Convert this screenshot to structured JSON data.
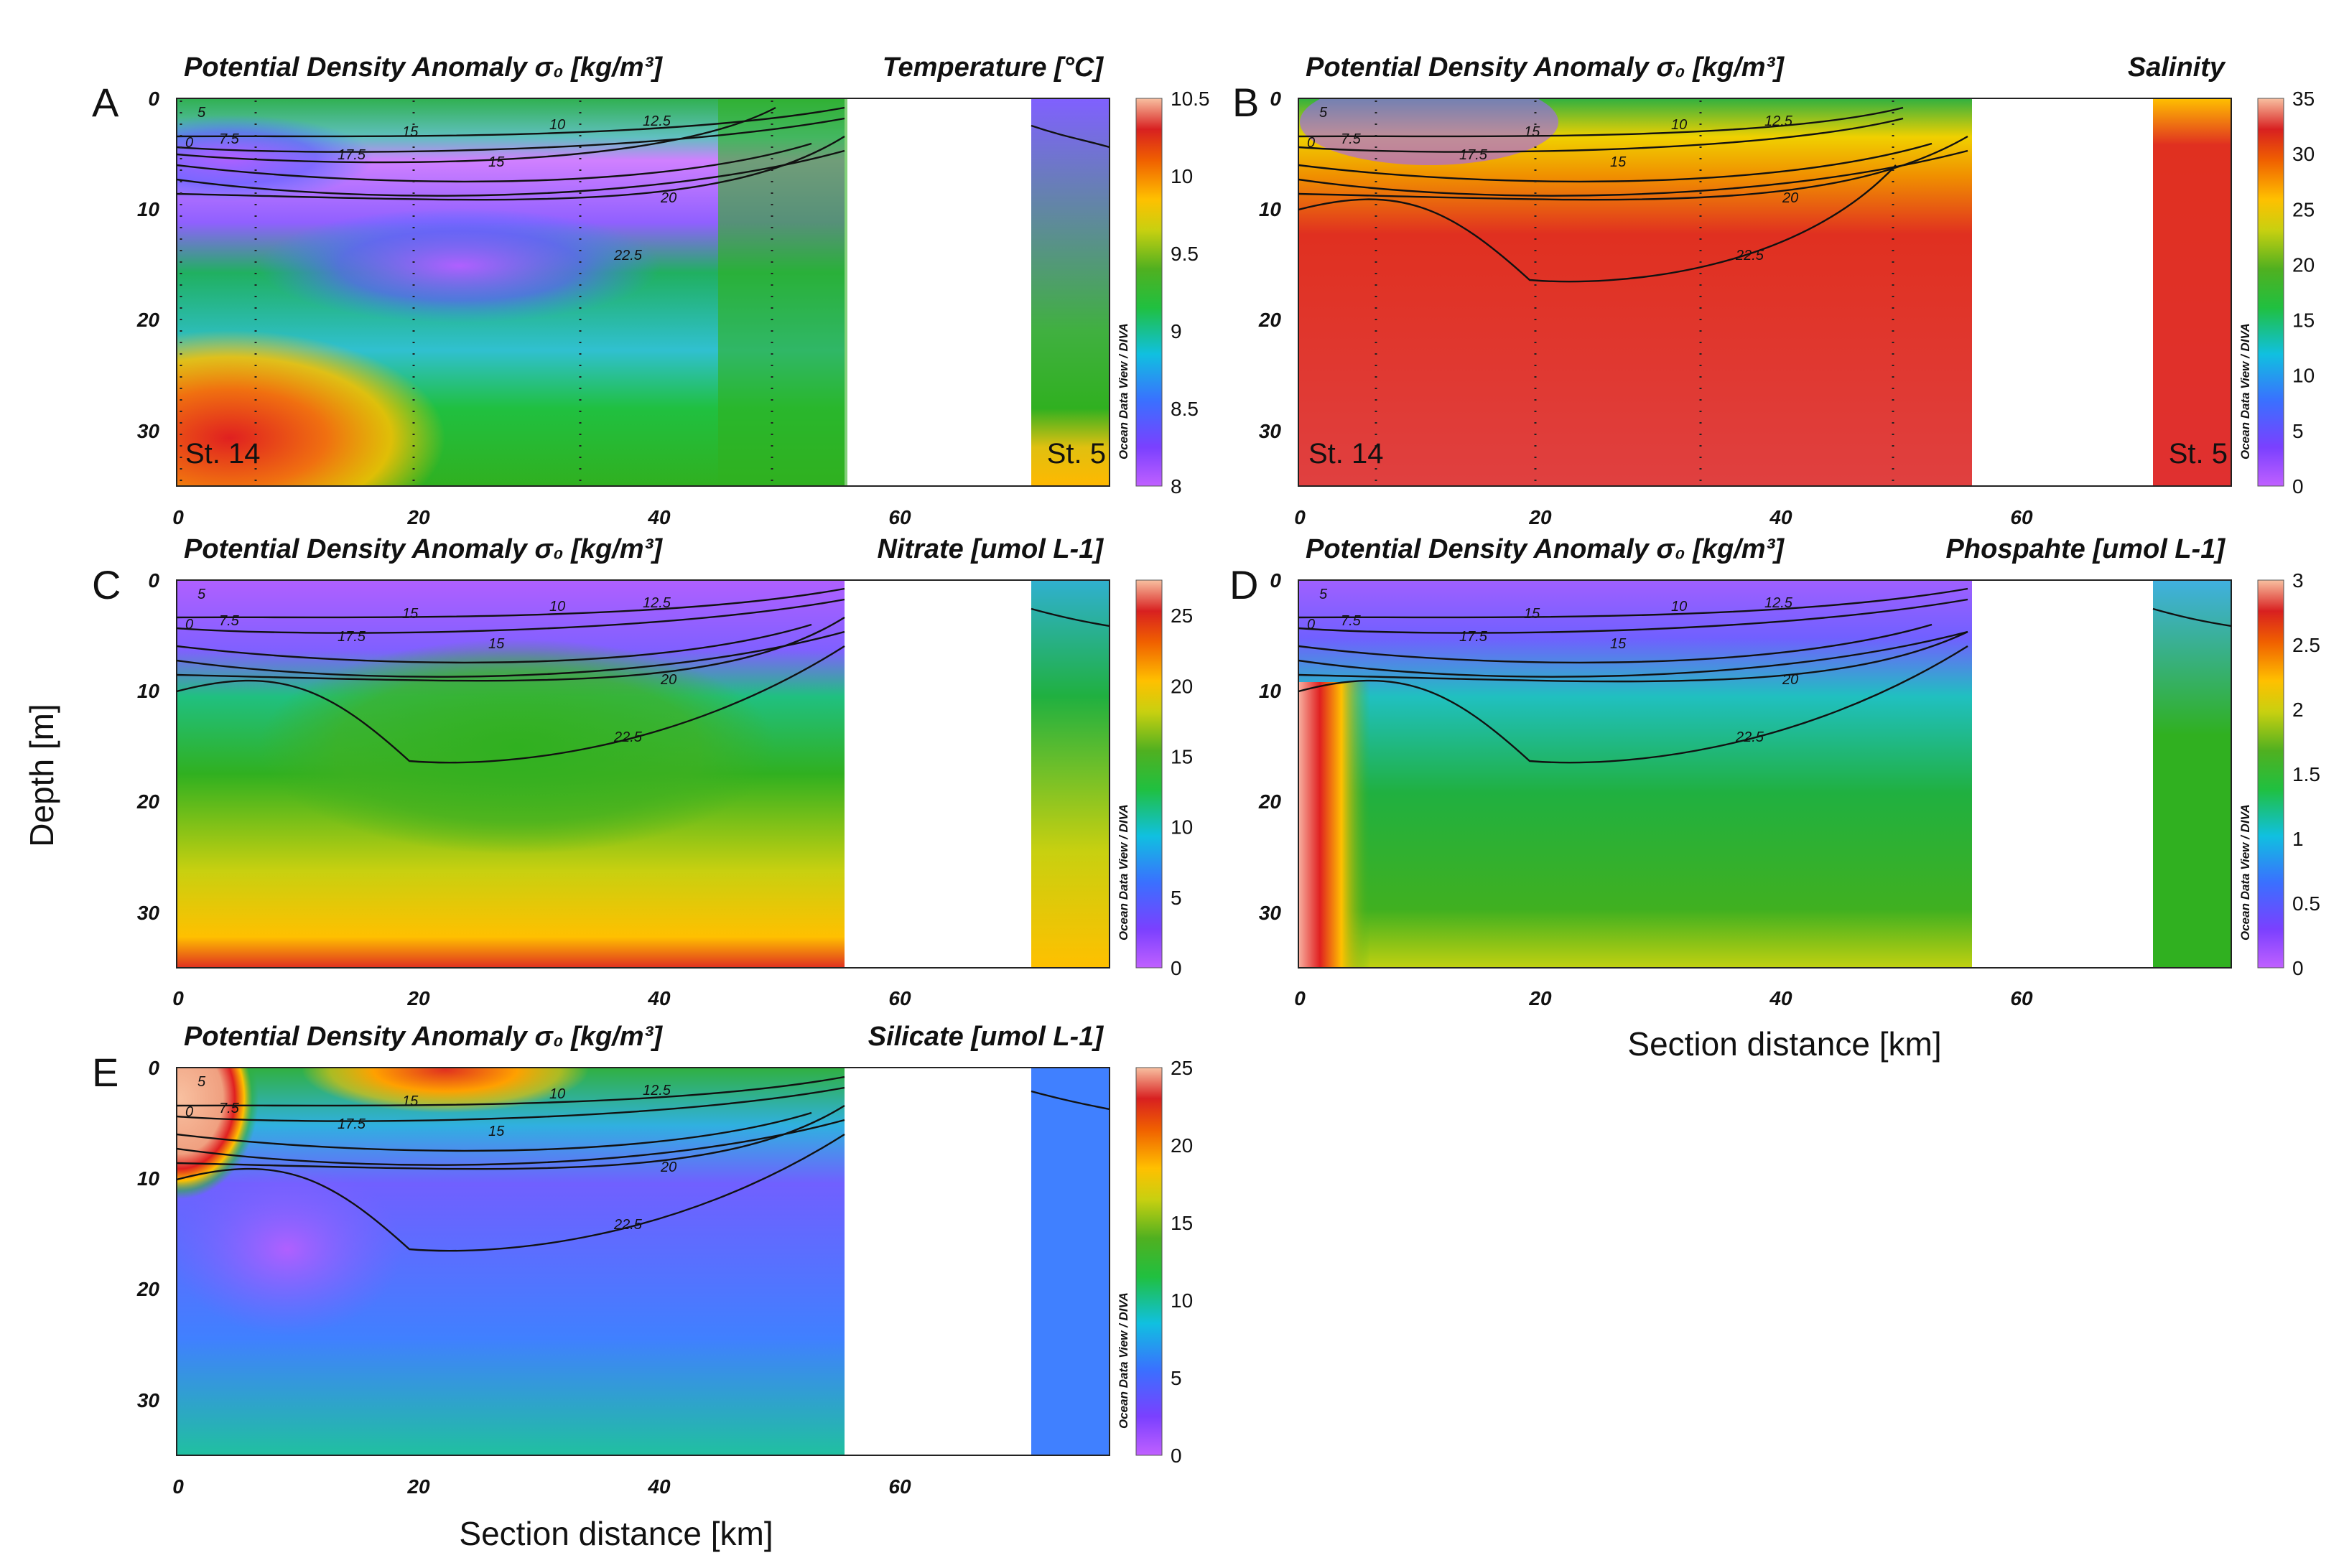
{
  "figure": {
    "ylabel": "Depth [m]",
    "xlabel": "Section distance [km]",
    "watermark": "Ocean Data View / DIVA",
    "contour_levels": [
      "0",
      "5",
      "7.5",
      "10",
      "12.5",
      "15",
      "17.5",
      "20",
      "22.5"
    ]
  },
  "chart_data": [
    {
      "id": "A",
      "type": "heatmap",
      "title_left": "Potential Density Anomaly σ₀ [kg/m³]",
      "title_right": "Temperature [°C]",
      "colorbar": {
        "ticks": [
          "10.5",
          "10",
          "9.5",
          "9",
          "8.5",
          "8"
        ],
        "vmin": 8,
        "vmax": 10.5
      },
      "stations": {
        "left": "St. 14",
        "right": "St. 5"
      },
      "xlim": [
        0,
        77
      ],
      "ylim": [
        35,
        0
      ],
      "xticks": [
        "0",
        "20",
        "40",
        "60"
      ],
      "yticks": [
        "0",
        "10",
        "20",
        "30"
      ]
    },
    {
      "id": "B",
      "type": "heatmap",
      "title_left": "Potential Density Anomaly σ₀ [kg/m³]",
      "title_right": "Salinity",
      "colorbar": {
        "ticks": [
          "35",
          "30",
          "25",
          "20",
          "15",
          "10",
          "5",
          "0"
        ],
        "vmin": 0,
        "vmax": 35
      },
      "stations": {
        "left": "St. 14",
        "right": "St. 5"
      },
      "xlim": [
        0,
        77
      ],
      "ylim": [
        35,
        0
      ],
      "xticks": [
        "0",
        "20",
        "40",
        "60"
      ],
      "yticks": [
        "0",
        "10",
        "20",
        "30"
      ]
    },
    {
      "id": "C",
      "type": "heatmap",
      "title_left": "Potential Density Anomaly σ₀ [kg/m³]",
      "title_right": "Nitrate [umol L-1]",
      "colorbar": {
        "ticks": [
          "25",
          "20",
          "15",
          "10",
          "5",
          "0"
        ],
        "vmin": 0,
        "vmax": 27.5
      },
      "xlim": [
        0,
        77
      ],
      "ylim": [
        35,
        0
      ],
      "xticks": [
        "0",
        "20",
        "40",
        "60"
      ],
      "yticks": [
        "0",
        "10",
        "20",
        "30"
      ]
    },
    {
      "id": "D",
      "type": "heatmap",
      "title_left": "Potential Density Anomaly σ₀ [kg/m³]",
      "title_right": "Phospahte [umol L-1]",
      "colorbar": {
        "ticks": [
          "3",
          "2.5",
          "2",
          "1.5",
          "1",
          "0.5",
          "0"
        ],
        "vmin": 0,
        "vmax": 3
      },
      "xlim": [
        0,
        77
      ],
      "ylim": [
        35,
        0
      ],
      "xticks": [
        "0",
        "20",
        "40",
        "60"
      ],
      "yticks": [
        "0",
        "10",
        "20",
        "30"
      ]
    },
    {
      "id": "E",
      "type": "heatmap",
      "title_left": "Potential Density Anomaly σ₀ [kg/m³]",
      "title_right": "Silicate [umol L-1]",
      "colorbar": {
        "ticks": [
          "25",
          "20",
          "15",
          "10",
          "5",
          "0"
        ],
        "vmin": 0,
        "vmax": 25
      },
      "xlim": [
        0,
        77
      ],
      "ylim": [
        35,
        0
      ],
      "xticks": [
        "0",
        "20",
        "40",
        "60"
      ],
      "yticks": [
        "0",
        "10",
        "20",
        "30"
      ]
    }
  ]
}
